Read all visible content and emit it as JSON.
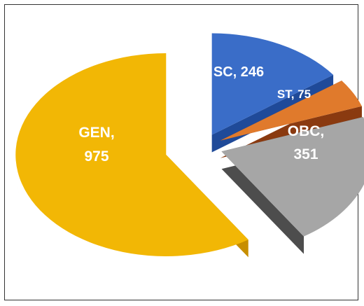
{
  "chart_data": {
    "type": "pie",
    "style": "3d-exploded",
    "title": "",
    "slices": [
      {
        "label": "GEN",
        "value": 975,
        "color": "#F2B705",
        "side_color": "#C78E00"
      },
      {
        "label": "SC",
        "value": 246,
        "color": "#3A6DC8",
        "side_color": "#1F4A99"
      },
      {
        "label": "ST",
        "value": 75,
        "color": "#E07A2C",
        "side_color": "#8A3A10"
      },
      {
        "label": "OBC",
        "value": 351,
        "color": "#A6A6A6",
        "side_color": "#4D4D4D"
      }
    ],
    "data_labels": [
      {
        "line1": "GEN,",
        "line2": "975"
      },
      {
        "line1": "SC, 246",
        "line2": ""
      },
      {
        "line1": "ST, 75",
        "line2": ""
      },
      {
        "line1": "OBC,",
        "line2": "351"
      }
    ]
  }
}
